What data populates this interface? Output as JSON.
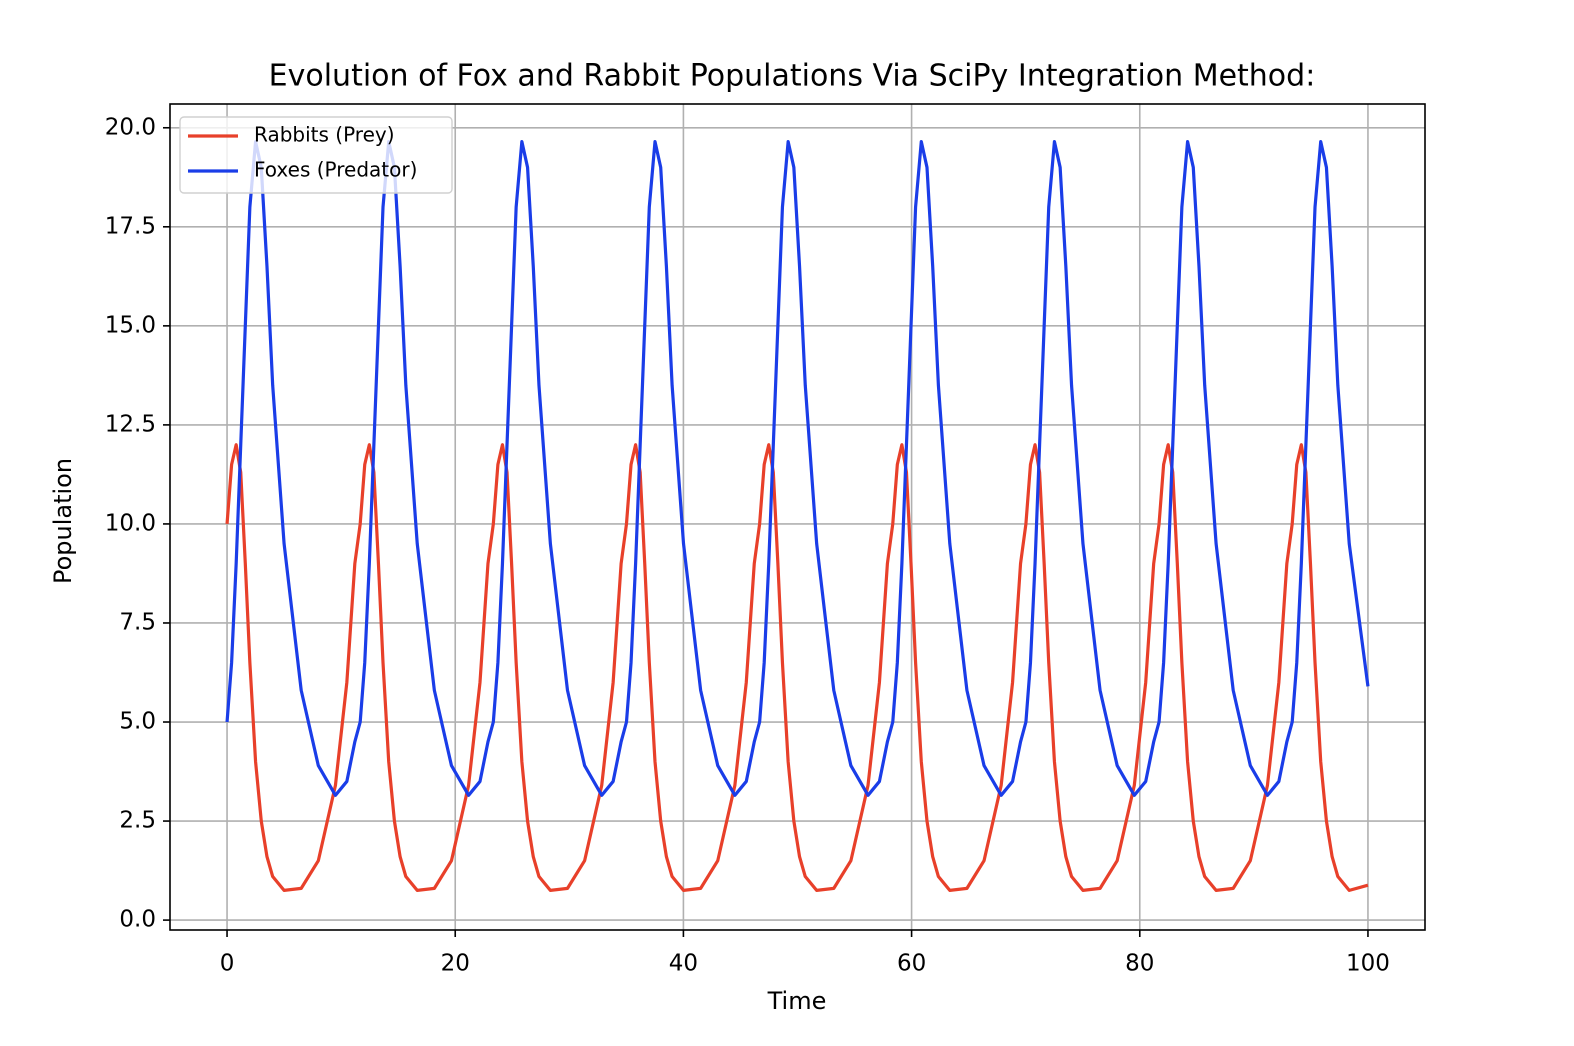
{
  "chart_data": {
    "type": "line",
    "title": "Evolution of Fox and Rabbit Populations Via SciPy Integration Method:",
    "xlabel": "Time",
    "ylabel": "Population",
    "x": [
      0,
      0.4,
      0.8,
      1.2,
      1.6,
      2,
      2.5,
      3,
      3.5,
      4,
      5,
      6.5,
      8,
      9.5,
      10.5,
      11.2,
      11.67,
      12.07,
      12.47,
      12.87,
      13.27,
      13.67,
      14.17,
      14.67,
      15.17,
      15.67,
      16.67,
      18.17,
      19.67,
      21.17,
      22.17,
      22.87,
      23.34,
      23.74,
      24.14,
      24.54,
      24.94,
      25.34,
      25.84,
      26.34,
      26.84,
      27.34,
      28.34,
      29.84,
      31.34,
      32.84,
      33.84,
      34.54,
      35.01,
      35.41,
      35.81,
      36.21,
      36.61,
      37.01,
      37.51,
      38.01,
      38.51,
      39.01,
      40.01,
      41.51,
      43.01,
      44.51,
      45.51,
      46.21,
      46.68,
      47.08,
      47.48,
      47.88,
      48.28,
      48.68,
      49.18,
      49.68,
      50.18,
      50.68,
      51.68,
      53.18,
      54.68,
      56.18,
      57.18,
      57.88,
      58.35,
      58.75,
      59.15,
      59.55,
      59.95,
      60.35,
      60.85,
      61.35,
      61.85,
      62.35,
      63.35,
      64.85,
      66.35,
      67.85,
      68.85,
      69.55,
      70.02,
      70.42,
      70.82,
      71.22,
      71.62,
      72.02,
      72.52,
      73.02,
      73.52,
      74.02,
      75.02,
      76.52,
      78.02,
      79.52,
      80.52,
      81.22,
      81.69,
      82.09,
      82.49,
      82.89,
      83.29,
      83.69,
      84.19,
      84.69,
      85.19,
      85.69,
      86.69,
      88.19,
      89.69,
      91.19,
      92.19,
      92.89,
      93.36,
      93.76,
      94.16,
      94.56,
      94.96,
      95.36,
      95.86,
      96.36,
      96.86,
      97.36,
      98.36,
      100
    ],
    "series": [
      {
        "name": "Rabbits (Prey)",
        "color": "#e8402a",
        "values": [
          10,
          11.5,
          12,
          11.3,
          9,
          6.5,
          4,
          2.5,
          1.6,
          1.1,
          0.75,
          0.8,
          1.5,
          3.4,
          6,
          9,
          10,
          11.5,
          12,
          11.3,
          9,
          6.5,
          4,
          2.5,
          1.6,
          1.1,
          0.75,
          0.8,
          1.5,
          3.4,
          6,
          9,
          10,
          11.5,
          12,
          11.3,
          9,
          6.5,
          4,
          2.5,
          1.6,
          1.1,
          0.75,
          0.8,
          1.5,
          3.4,
          6,
          9,
          10,
          11.5,
          12,
          11.3,
          9,
          6.5,
          4,
          2.5,
          1.6,
          1.1,
          0.75,
          0.8,
          1.5,
          3.4,
          6,
          9,
          10,
          11.5,
          12,
          11.3,
          9,
          6.5,
          4,
          2.5,
          1.6,
          1.1,
          0.75,
          0.8,
          1.5,
          3.4,
          6,
          9,
          10,
          11.5,
          12,
          11.3,
          9,
          6.5,
          4,
          2.5,
          1.6,
          1.1,
          0.75,
          0.8,
          1.5,
          3.4,
          6,
          9,
          10,
          11.5,
          12,
          11.3,
          9,
          6.5,
          4,
          2.5,
          1.6,
          1.1,
          0.75,
          0.8,
          1.5,
          3.4,
          6,
          9,
          10,
          11.5,
          12,
          11.3,
          9,
          6.5,
          4,
          2.5,
          1.6,
          1.1,
          0.75,
          0.8,
          1.5,
          3.4,
          6,
          9,
          10,
          11.5,
          12,
          11.3,
          9,
          6.5,
          4,
          2.5,
          1.6,
          1.1,
          0.75,
          0.88
        ]
      },
      {
        "name": "Foxes (Predator)",
        "color": "#1a3de8",
        "values": [
          5,
          6.5,
          9,
          12,
          15,
          18,
          19.65,
          19,
          16.5,
          13.5,
          9.5,
          5.8,
          3.9,
          3.15,
          3.5,
          4.5,
          5,
          6.5,
          9,
          12,
          15,
          18,
          19.65,
          19,
          16.5,
          13.5,
          9.5,
          5.8,
          3.9,
          3.15,
          3.5,
          4.5,
          5,
          6.5,
          9,
          12,
          15,
          18,
          19.65,
          19,
          16.5,
          13.5,
          9.5,
          5.8,
          3.9,
          3.15,
          3.5,
          4.5,
          5,
          6.5,
          9,
          12,
          15,
          18,
          19.65,
          19,
          16.5,
          13.5,
          9.5,
          5.8,
          3.9,
          3.15,
          3.5,
          4.5,
          5,
          6.5,
          9,
          12,
          15,
          18,
          19.65,
          19,
          16.5,
          13.5,
          9.5,
          5.8,
          3.9,
          3.15,
          3.5,
          4.5,
          5,
          6.5,
          9,
          12,
          15,
          18,
          19.65,
          19,
          16.5,
          13.5,
          9.5,
          5.8,
          3.9,
          3.15,
          3.5,
          4.5,
          5,
          6.5,
          9,
          12,
          15,
          18,
          19.65,
          19,
          16.5,
          13.5,
          9.5,
          5.8,
          3.9,
          3.15,
          3.5,
          4.5,
          5,
          6.5,
          9,
          12,
          15,
          18,
          19.65,
          19,
          16.5,
          13.5,
          9.5,
          5.8,
          3.9,
          3.15,
          3.5,
          4.5,
          5,
          6.5,
          9,
          12,
          15,
          18,
          19.65,
          19,
          16.5,
          13.5,
          9.5,
          5.9
        ]
      }
    ],
    "xlim": [
      -5,
      105
    ],
    "ylim": [
      -0.25,
      20.6
    ],
    "xticks": [
      0,
      20,
      40,
      60,
      80,
      100
    ],
    "yticks": [
      {
        "value": 0,
        "label": "0.0"
      },
      2.5,
      {
        "value": 5,
        "label": "5.0"
      },
      7.5,
      {
        "value": 10,
        "label": "10.0"
      },
      12.5,
      {
        "value": 15,
        "label": "15.0"
      },
      17.5,
      {
        "value": 20,
        "label": "20.0"
      }
    ],
    "grid": true,
    "legend": "upper left"
  }
}
